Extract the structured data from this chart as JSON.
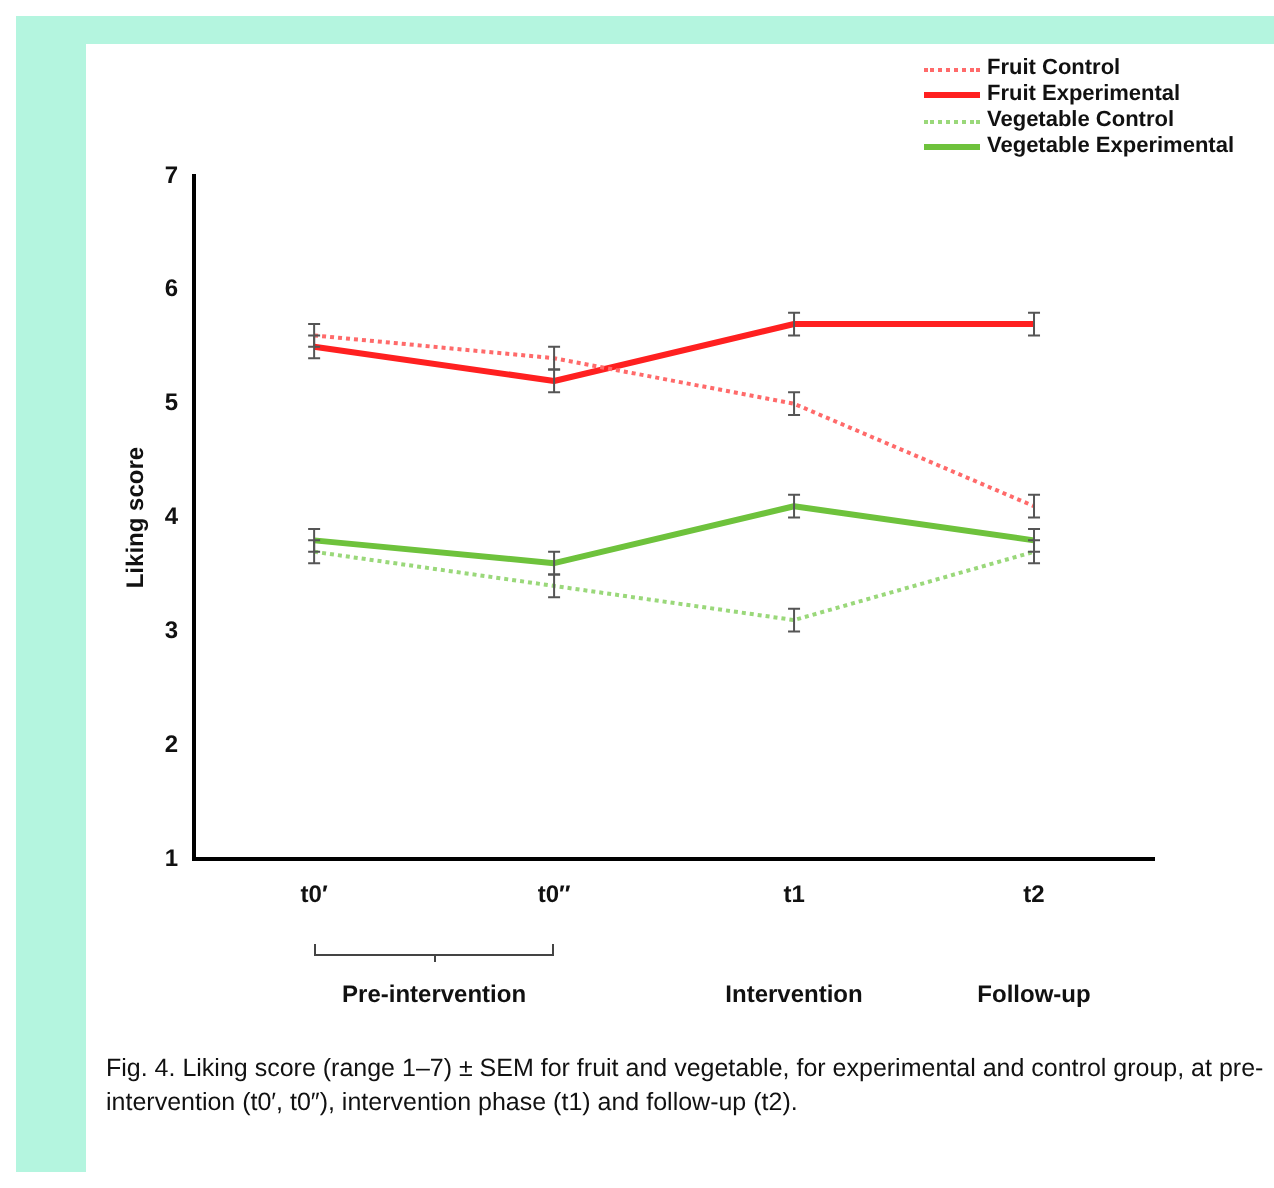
{
  "chart_data": {
    "type": "line",
    "ylabel": "Liking score",
    "categories": [
      "t0′",
      "t0″",
      "t1",
      "t2"
    ],
    "ylim": [
      1,
      7
    ],
    "yticks": [
      1,
      2,
      3,
      4,
      5,
      6,
      7
    ],
    "grid": false,
    "legend": "top right",
    "marker": "none",
    "series": [
      {
        "name": "Fruit Control",
        "color": "#ff6a6a",
        "line_style": "dotted",
        "values": [
          5.6,
          5.4,
          5.0,
          4.1
        ],
        "errors": [
          0.1,
          0.1,
          0.1,
          0.1
        ]
      },
      {
        "name": "Fruit Experimental",
        "color": "#ff2020",
        "line_style": "solid",
        "values": [
          5.5,
          5.2,
          5.7,
          5.7
        ],
        "errors": [
          0.1,
          0.1,
          0.1,
          0.1
        ]
      },
      {
        "name": "Vegetable Control",
        "color": "#9ad87a",
        "line_style": "dotted",
        "values": [
          3.7,
          3.4,
          3.1,
          3.7
        ],
        "errors": [
          0.1,
          0.1,
          0.1,
          0.1
        ]
      },
      {
        "name": "Vegetable Experimental",
        "color": "#6ec23c",
        "line_style": "solid",
        "values": [
          3.8,
          3.6,
          4.1,
          3.8
        ],
        "errors": [
          0.1,
          0.1,
          0.1,
          0.1
        ]
      }
    ],
    "annotations": [
      "Pre-intervention",
      "Intervention",
      "Follow-up",
      "Fig. 4. Liking score (range 1–7) ± SEM for fruit and vegetable, for experimental and control group, at pre-intervention (t0′, t0″), intervention phase (t1) and follow-up (t2)."
    ]
  }
}
